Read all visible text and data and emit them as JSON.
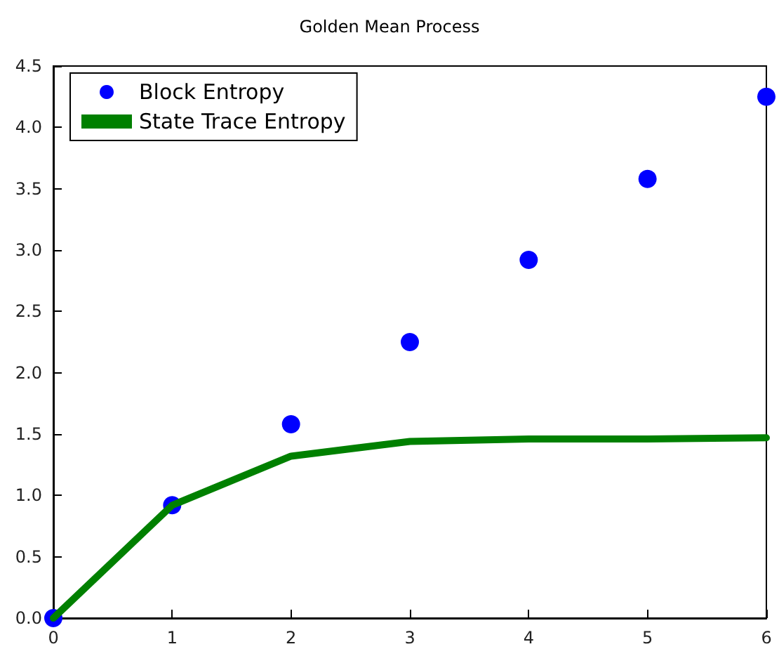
{
  "chart_data": {
    "type": "line",
    "title": "Golden Mean Process",
    "x": [
      0,
      1,
      2,
      3,
      4,
      5,
      6
    ],
    "series": [
      {
        "name": "Block Entropy",
        "type": "scatter",
        "marker": "circle",
        "color": "#0000ff",
        "values": [
          0,
          0.92,
          1.58,
          2.25,
          2.92,
          3.58,
          4.25
        ]
      },
      {
        "name": "State Trace Entropy",
        "marker": "none",
        "line_style": "solid",
        "color": "#008000",
        "values": [
          0,
          0.92,
          1.32,
          1.44,
          1.46,
          1.46,
          1.47
        ]
      }
    ],
    "xlim": [
      0,
      6
    ],
    "xticks": [
      0,
      1,
      2,
      3,
      4,
      5,
      6
    ],
    "ylim": [
      0,
      4.5
    ],
    "yticks": [
      {
        "value": 0,
        "label": "0.0"
      },
      0.5,
      {
        "value": 1,
        "label": "1.0"
      },
      1.5,
      {
        "value": 2,
        "label": "2.0"
      },
      2.5,
      {
        "value": 3,
        "label": "3.0"
      },
      3.5,
      {
        "value": 4,
        "label": "4.0"
      },
      4.5
    ],
    "legend": "top left"
  }
}
